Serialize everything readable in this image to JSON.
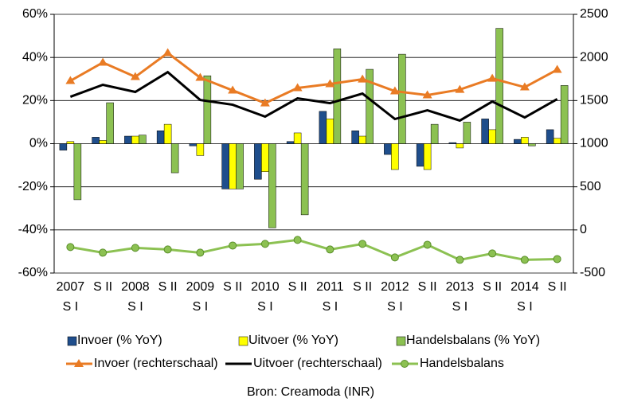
{
  "chart_data": {
    "type": "combo",
    "categories": [
      [
        "2007",
        "S I"
      ],
      [
        "S II"
      ],
      [
        "2008",
        "S I"
      ],
      [
        "S II"
      ],
      [
        "2009",
        "S I"
      ],
      [
        "S II"
      ],
      [
        "2010",
        "S I"
      ],
      [
        "S II"
      ],
      [
        "2011",
        "S I"
      ],
      [
        "S II"
      ],
      [
        "2012",
        "S I"
      ],
      [
        "S II"
      ],
      [
        "2013",
        "S I"
      ],
      [
        "S II"
      ],
      [
        "2014",
        "S I"
      ],
      [
        "S II"
      ]
    ],
    "series": [
      {
        "name": "Invoer (% YoY)",
        "type": "bar",
        "color": "#1f4e8c",
        "values": [
          -3,
          3,
          3.5,
          6,
          -1,
          -21,
          -16.5,
          1,
          15,
          6,
          -5,
          -10.5,
          0.5,
          11.5,
          2,
          6.5
        ]
      },
      {
        "name": "Uitvoer (% YoY)",
        "type": "bar",
        "color": "#ffff00",
        "values": [
          1,
          1.5,
          3.5,
          9,
          -5.5,
          -21,
          -13,
          5,
          11.5,
          3.5,
          -12,
          -12,
          -2,
          6.5,
          3,
          2.5
        ]
      },
      {
        "name": "Handelsbalans (% YoY)",
        "type": "bar",
        "color": "#8cc152",
        "values": [
          -26,
          19,
          4,
          -13.5,
          31.5,
          -21,
          -39,
          -33,
          44,
          34.5,
          41.5,
          9,
          10,
          53.5,
          -1,
          27
        ]
      },
      {
        "name": "Invoer (rechterschaal)",
        "type": "line",
        "axis": "y2",
        "marker": "triangle",
        "color": "#e97b24",
        "values": [
          1729,
          1941,
          1775,
          2052,
          1766,
          1618,
          1470,
          1646,
          1692,
          1747,
          1609,
          1563,
          1627,
          1756,
          1655,
          1858
        ]
      },
      {
        "name": "Uitvoer (rechterschaal)",
        "type": "line",
        "axis": "y2",
        "marker": "none",
        "color": "#000000",
        "values": [
          1544,
          1683,
          1600,
          1830,
          1507,
          1452,
          1314,
          1526,
          1470,
          1581,
          1286,
          1387,
          1268,
          1489,
          1304,
          1517
        ]
      },
      {
        "name": "Handelsbalans",
        "type": "line",
        "axis": "y2",
        "marker": "circle",
        "color": "#8cc152",
        "values": [
          -199,
          -264,
          -208,
          -227,
          -264,
          -181,
          -162,
          -116,
          -227,
          -162,
          -319,
          -172,
          -347,
          -273,
          -347,
          -338
        ]
      }
    ],
    "ylim": [
      -60,
      60
    ],
    "yticks": [
      {
        "value": -60,
        "label": "-60%"
      },
      {
        "value": -40,
        "label": "-40%"
      },
      {
        "value": -20,
        "label": "-20%"
      },
      {
        "value": 0,
        "label": "0%"
      },
      {
        "value": 20,
        "label": "20%"
      },
      {
        "value": 40,
        "label": "40%"
      },
      {
        "value": 60,
        "label": "60%"
      }
    ],
    "y2lim": [
      -500,
      2500
    ],
    "y2ticks": [
      -500,
      0,
      500,
      1000,
      1500,
      2000,
      2500
    ],
    "grid": true,
    "legend": "bottom",
    "source": "Bron: Creamoda (INR)"
  }
}
